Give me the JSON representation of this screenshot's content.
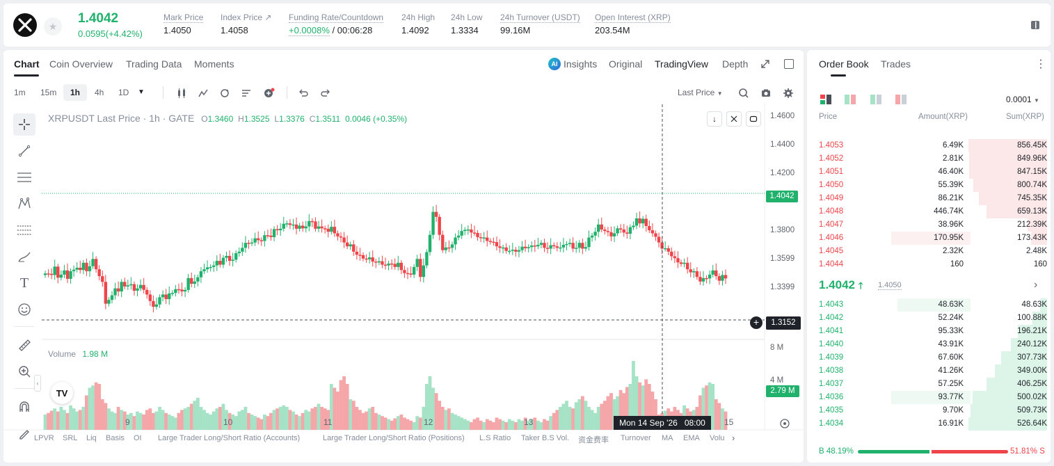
{
  "header": {
    "logo_icon": "x-logo-icon",
    "price": "1.4042",
    "change": "0.0595(+4.42%)",
    "stats": [
      {
        "label": "Mark Price",
        "value": "1.4050"
      },
      {
        "label": "Index Price ↗",
        "value": "1.4058"
      },
      {
        "label": "Funding Rate/Countdown",
        "value_green": "+0.0008%",
        "value": " / 00:06:28"
      },
      {
        "label": "24h High",
        "value": "1.4092"
      },
      {
        "label": "24h Low",
        "value": "1.3334"
      },
      {
        "label": "24h Turnover (USDT)",
        "value": "99.16M"
      },
      {
        "label": "Open Interest (XRP)",
        "value": "203.54M"
      }
    ]
  },
  "chart_tabs": [
    "Chart",
    "Coin Overview",
    "Trading Data",
    "Moments"
  ],
  "view_tabs": {
    "insights": "Insights",
    "original": "Original",
    "tradingview": "TradingView",
    "depth": "Depth"
  },
  "intervals": [
    "1m",
    "15m",
    "1h",
    "4h",
    "1D"
  ],
  "last_price_select": "Last Price",
  "legend": {
    "symbol": "XRPUSDT Last Price · 1h · GATE",
    "o_label": "O",
    "o": "1.3460",
    "h_label": "H",
    "h": "1.3525",
    "l_label": "L",
    "l": "1.3376",
    "c_label": "C",
    "c": "1.3511",
    "chg": "0.0046 (+0.35%)"
  },
  "price_axis": [
    "1.4600",
    "1.4400",
    "1.4200",
    "1.3800",
    "1.3599",
    "1.3399"
  ],
  "price_tag": "1.4042",
  "crosshair_tag": "1.3152",
  "volume": {
    "label": "Volume",
    "value": "1.98 M",
    "axis": [
      "8 M",
      "4 M"
    ],
    "tag": "2.79 M"
  },
  "time_axis": [
    "9",
    "10",
    "11",
    "12",
    "13",
    "15"
  ],
  "time_tag": "Mon 14 Sep '26   08:00",
  "bottom_indicators": [
    "LPVR",
    "SRL",
    "Liq",
    "Basis",
    "OI",
    "Large Trader Long/Short Ratio (Accounts)",
    "Large Trader Long/Short Ratio (Positions)",
    "L.S Ratio",
    "Taker B.S Vol.",
    "资金费率",
    "Turnover",
    "MA",
    "EMA",
    "Volu"
  ],
  "orderbook": {
    "tabs": [
      "Order Book",
      "Trades"
    ],
    "precision": "0.0001",
    "headers": {
      "price": "Price",
      "amount": "Amount(XRP)",
      "sum": "Sum(XRP)"
    },
    "asks": [
      {
        "price": "1.4053",
        "amount": "6.49K",
        "sum": "856.45K",
        "fill": 1.0,
        "afill": 0.0
      },
      {
        "price": "1.4052",
        "amount": "2.81K",
        "sum": "849.96K",
        "fill": 0.99,
        "afill": 0.0
      },
      {
        "price": "1.4051",
        "amount": "46.40K",
        "sum": "847.15K",
        "fill": 0.99,
        "afill": 0.0
      },
      {
        "price": "1.4050",
        "amount": "55.39K",
        "sum": "800.74K",
        "fill": 0.94,
        "afill": 0.0
      },
      {
        "price": "1.4049",
        "amount": "86.21K",
        "sum": "745.35K",
        "fill": 0.87,
        "afill": 0.0
      },
      {
        "price": "1.4048",
        "amount": "446.74K",
        "sum": "659.13K",
        "fill": 0.77,
        "afill": 0.0
      },
      {
        "price": "1.4047",
        "amount": "38.96K",
        "sum": "212.39K",
        "fill": 0.25,
        "afill": 0.0
      },
      {
        "price": "1.4046",
        "amount": "170.95K",
        "sum": "173.43K",
        "fill": 0.2,
        "afill": 0.38
      },
      {
        "price": "1.4045",
        "amount": "2.32K",
        "sum": "2.48K",
        "fill": 0.0,
        "afill": 0.0
      },
      {
        "price": "1.4044",
        "amount": "160",
        "sum": "160",
        "fill": 0.0,
        "afill": 0.0
      }
    ],
    "last_price": "1.4042",
    "mark_price": "1.4050",
    "bids": [
      {
        "price": "1.4043",
        "amount": "48.63K",
        "sum": "48.63K",
        "fill": 0.09,
        "afill": 0.35
      },
      {
        "price": "1.4042",
        "amount": "52.24K",
        "sum": "100.88K",
        "fill": 0.19,
        "afill": 0.0
      },
      {
        "price": "1.4041",
        "amount": "95.33K",
        "sum": "196.21K",
        "fill": 0.37,
        "afill": 0.0
      },
      {
        "price": "1.4040",
        "amount": "43.91K",
        "sum": "240.12K",
        "fill": 0.46,
        "afill": 0.0
      },
      {
        "price": "1.4039",
        "amount": "67.60K",
        "sum": "307.73K",
        "fill": 0.58,
        "afill": 0.0
      },
      {
        "price": "1.4038",
        "amount": "41.26K",
        "sum": "349.00K",
        "fill": 0.66,
        "afill": 0.0
      },
      {
        "price": "1.4037",
        "amount": "57.25K",
        "sum": "406.25K",
        "fill": 0.77,
        "afill": 0.0
      },
      {
        "price": "1.4036",
        "amount": "93.77K",
        "sum": "500.02K",
        "fill": 0.95,
        "afill": 0.38
      },
      {
        "price": "1.4035",
        "amount": "9.70K",
        "sum": "509.73K",
        "fill": 0.97,
        "afill": 0.0
      },
      {
        "price": "1.4034",
        "amount": "16.91K",
        "sum": "526.64K",
        "fill": 1.0,
        "afill": 0.0
      }
    ],
    "buy_ratio": "48.19%",
    "sell_ratio": "51.81%",
    "buy_label": "B",
    "sell_label": "S"
  },
  "colors": {
    "up": "#20b26c",
    "down": "#ef454a",
    "up_vol": "#a6e3c6",
    "down_vol": "#f5a6a9"
  }
}
